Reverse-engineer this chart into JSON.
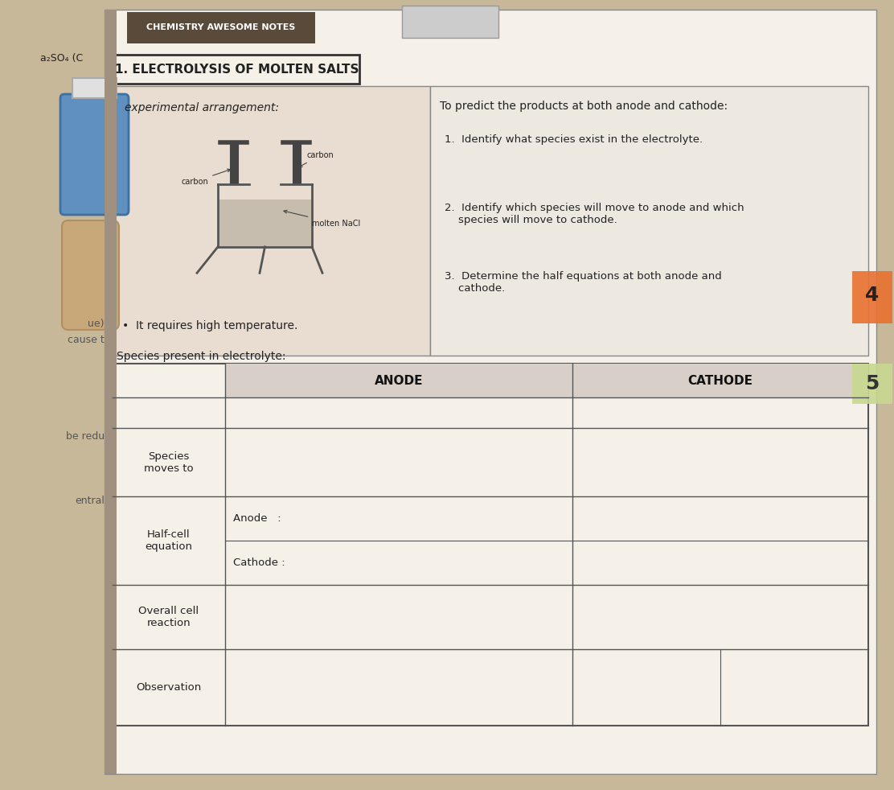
{
  "title": "CHEMISTRY AWESOME NOTES",
  "section_title": "1. ELECTROLYSIS OF MOLTEN SALTS",
  "background_color": "#c8b89a",
  "page_bg": "#d4c4a8",
  "white_bg": "#f5f0e8",
  "header_bg": "#5a4a3a",
  "header_text_color": "#ffffff",
  "table_header_color": "#4a4a4a",
  "left_panel_title": "experimental arrangement:",
  "left_panel_bullet": "It requires high temperature.",
  "right_panel_title": "To predict the products at both anode and cathode:",
  "right_panel_items": [
    "1.  Identify what species exist in the electrolyte.",
    "2.  Identify which species will move to anode and which\n    species will move to cathode.",
    "3.  Determine the half equations at both anode and\n    cathode."
  ],
  "species_label": "Species present in electrolyte:",
  "anode_label": "ANODE",
  "cathode_label": "CATHODE",
  "row_labels": [
    "Species\nmoves to",
    "Half-cell\nequation",
    "Overall cell\nreaction",
    "Observation"
  ],
  "sub_labels": [
    "Anode   :",
    "Cathode :"
  ],
  "diagram_labels": [
    "carbon",
    "carbon",
    "molten NaCl"
  ],
  "side_text_left": [
    "ue)",
    "be redu",
    "cause t",
    "entral"
  ],
  "side_text_right": [
    "4",
    "5"
  ],
  "corner_text": [
    "a₂SO₄ (C"
  ]
}
